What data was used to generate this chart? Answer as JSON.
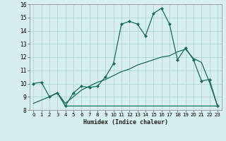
{
  "title": "",
  "xlabel": "Humidex (Indice chaleur)",
  "bg_color": "#d6eeee",
  "grid_color": "#b0d4d4",
  "line_color": "#1a6b5a",
  "xlim": [
    -0.5,
    23.5
  ],
  "ylim": [
    8,
    16
  ],
  "xticks": [
    0,
    1,
    2,
    3,
    4,
    5,
    6,
    7,
    8,
    9,
    10,
    11,
    12,
    13,
    14,
    15,
    16,
    17,
    18,
    19,
    20,
    21,
    22,
    23
  ],
  "yticks": [
    8,
    9,
    10,
    11,
    12,
    13,
    14,
    15,
    16
  ],
  "line1_x": [
    0,
    1,
    2,
    3,
    4,
    5,
    6,
    7,
    8,
    9,
    10,
    11,
    12,
    13,
    14,
    15,
    16,
    17,
    18,
    19,
    20,
    21,
    22,
    23
  ],
  "line1_y": [
    10.0,
    10.1,
    9.0,
    9.3,
    8.3,
    9.3,
    9.8,
    9.7,
    9.8,
    10.5,
    11.5,
    14.5,
    14.7,
    14.5,
    13.6,
    15.3,
    15.7,
    14.5,
    11.8,
    12.7,
    11.8,
    10.2,
    10.3,
    8.3
  ],
  "line2_x": [
    2,
    3,
    4,
    5,
    6,
    7,
    8,
    9,
    10,
    11,
    12,
    13,
    14,
    15,
    16,
    17,
    18,
    19,
    20,
    21,
    22,
    23
  ],
  "line2_y": [
    9.0,
    9.3,
    8.3,
    8.3,
    8.3,
    8.3,
    8.3,
    8.3,
    8.3,
    8.3,
    8.3,
    8.3,
    8.3,
    8.3,
    8.3,
    8.3,
    8.3,
    8.3,
    8.3,
    8.3,
    8.3,
    8.3
  ],
  "line3_x": [
    0,
    2,
    3,
    4,
    5,
    6,
    7,
    8,
    9,
    10,
    11,
    12,
    13,
    14,
    15,
    16,
    17,
    18,
    19,
    20,
    21,
    22,
    23
  ],
  "line3_y": [
    8.5,
    9.0,
    9.3,
    8.5,
    9.0,
    9.5,
    9.8,
    10.1,
    10.3,
    10.6,
    10.9,
    11.1,
    11.4,
    11.6,
    11.8,
    12.0,
    12.1,
    12.4,
    12.6,
    11.9,
    11.6,
    10.1,
    8.3
  ]
}
